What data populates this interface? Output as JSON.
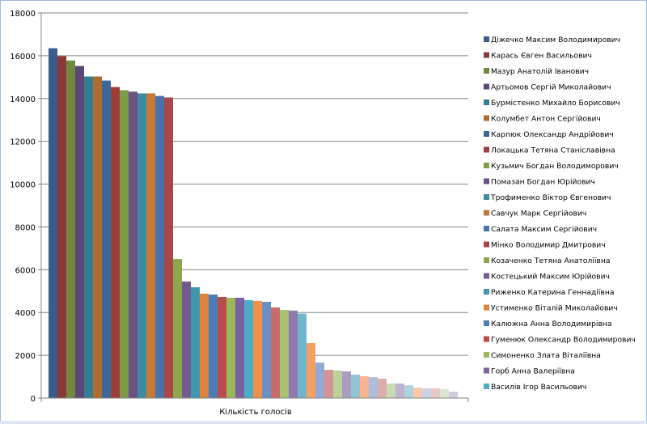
{
  "chart_data": {
    "type": "bar",
    "title": "",
    "xlabel": "Кількість голосів",
    "ylabel": "",
    "ylim": [
      0,
      18000
    ],
    "yticks": [
      0,
      2000,
      4000,
      6000,
      8000,
      10000,
      12000,
      14000,
      16000,
      18000
    ],
    "grid": true,
    "legend_position": "right",
    "series": [
      {
        "name": "Діжечко Максим Володимирович",
        "value": 16350,
        "color": "#385D8A"
      },
      {
        "name": "Карась Євген Васильович",
        "value": 15980,
        "color": "#8C3836"
      },
      {
        "name": "Мазур Анатолій Іванович",
        "value": 15780,
        "color": "#71893F"
      },
      {
        "name": "Артьомов Сергій Миколайович",
        "value": 15520,
        "color": "#5C4776"
      },
      {
        "name": "Бурмістенко Михайло Борисович",
        "value": 15030,
        "color": "#357D91"
      },
      {
        "name": "Колумбет Антон Сергійович",
        "value": 15030,
        "color": "#B06C30"
      },
      {
        "name": "Карпюк Олександр Андрійович",
        "value": 14840,
        "color": "#3D6699"
      },
      {
        "name": "Локацька Тетяна Станіславівна",
        "value": 14540,
        "color": "#9C3D3B"
      },
      {
        "name": "Кузьмич Богдан Володиморович",
        "value": 14390,
        "color": "#7F9A46"
      },
      {
        "name": "Помазан Богдан Юрійович",
        "value": 14320,
        "color": "#6A5283"
      },
      {
        "name": "Трофименко Віктор Євгенович",
        "value": 14240,
        "color": "#3B8BA1"
      },
      {
        "name": "Савчук Марк Сергійович",
        "value": 14240,
        "color": "#C67836"
      },
      {
        "name": "Салата Максим Сергійович",
        "value": 14120,
        "color": "#4674AA"
      },
      {
        "name": "Мінко Володимир Дмитрович",
        "value": 14050,
        "color": "#A84745"
      },
      {
        "name": "Козаченко Тетяна Анатоліївна",
        "value": 6500,
        "color": "#8DA64D"
      },
      {
        "name": "Костецький Максим Юрійович",
        "value": 5450,
        "color": "#725990"
      },
      {
        "name": "Риженко Катерина Геннадіївна",
        "value": 5180,
        "color": "#4197AF"
      },
      {
        "name": "Устименко Віталій Миколайович",
        "value": 4880,
        "color": "#DB843D"
      },
      {
        "name": "Калюжна Анна Володимирівна",
        "value": 4840,
        "color": "#4A7DBA"
      },
      {
        "name": "Гуменюк Олександр Володимирович",
        "value": 4730,
        "color": "#B94C4A"
      },
      {
        "name": "Симоненко Злата Віталіївна",
        "value": 4690,
        "color": "#9AB759"
      },
      {
        "name": "Горб Анна Валеріївна",
        "value": 4690,
        "color": "#7D60A0"
      },
      {
        "name": "Василів Ігор Васильович",
        "value": 4580,
        "color": "#4BACC6"
      },
      {
        "value": 4540,
        "color": "#F0914A"
      },
      {
        "value": 4500,
        "color": "#6A90C6"
      },
      {
        "value": 4240,
        "color": "#C76A6A"
      },
      {
        "value": 4120,
        "color": "#A9C06F"
      },
      {
        "value": 4090,
        "color": "#9179B0"
      },
      {
        "value": 3950,
        "color": "#6DB6CC"
      },
      {
        "value": 2570,
        "color": "#F6A064"
      },
      {
        "value": 1660,
        "color": "#95AAD2"
      },
      {
        "value": 1320,
        "color": "#D49392"
      },
      {
        "value": 1290,
        "color": "#BCD09A"
      },
      {
        "value": 1250,
        "color": "#A99DC1"
      },
      {
        "value": 1100,
        "color": "#93C5D6"
      },
      {
        "value": 1020,
        "color": "#F8B590"
      },
      {
        "value": 980,
        "color": "#ADBDDB"
      },
      {
        "value": 910,
        "color": "#DCADAD"
      },
      {
        "value": 680,
        "color": "#CAD9B2"
      },
      {
        "value": 680,
        "color": "#BEB3D0"
      },
      {
        "value": 600,
        "color": "#ADD3DF"
      },
      {
        "value": 490,
        "color": "#FAC8AB"
      },
      {
        "value": 450,
        "color": "#C8D1E5"
      },
      {
        "value": 450,
        "color": "#E6C7C7"
      },
      {
        "value": 420,
        "color": "#DCE5D0"
      },
      {
        "value": 300,
        "color": "#D3CCDE"
      }
    ]
  }
}
